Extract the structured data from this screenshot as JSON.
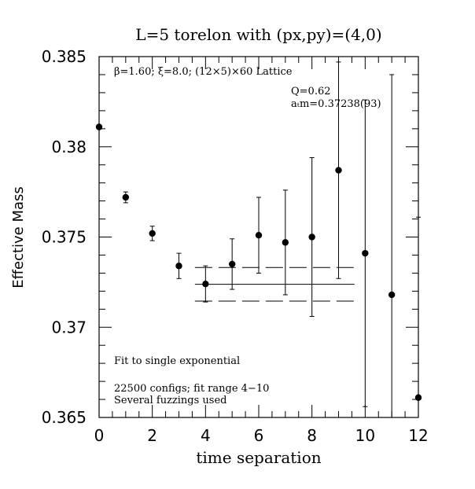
{
  "chart_data": {
    "type": "scatter",
    "title": "L=5 torelon with (px,py)=(4,0)",
    "xlabel": "time separation",
    "ylabel": "Effective Mass",
    "xlim": [
      0,
      12
    ],
    "ylim": [
      0.365,
      0.385
    ],
    "x_ticks": [
      0,
      2,
      4,
      6,
      8,
      10,
      12
    ],
    "x_tick_labels": [
      "0",
      "2",
      "4",
      "6",
      "8",
      "10",
      "12"
    ],
    "y_ticks": [
      0.365,
      0.37,
      0.375,
      0.38,
      0.385
    ],
    "y_tick_labels": [
      "0.365",
      "0.37",
      "0.375",
      "0.38",
      "0.385"
    ],
    "grid": false,
    "points": [
      {
        "x": 0,
        "y": 0.3811,
        "err": 0.0
      },
      {
        "x": 1,
        "y": 0.3772,
        "err": 0.0003
      },
      {
        "x": 2,
        "y": 0.3752,
        "err": 0.0004
      },
      {
        "x": 3,
        "y": 0.3734,
        "err": 0.0007
      },
      {
        "x": 4,
        "y": 0.3724,
        "err": 0.001
      },
      {
        "x": 5,
        "y": 0.3735,
        "err": 0.0014
      },
      {
        "x": 6,
        "y": 0.3751,
        "err": 0.0021
      },
      {
        "x": 7,
        "y": 0.3747,
        "err": 0.0029
      },
      {
        "x": 8,
        "y": 0.375,
        "err": 0.0044
      },
      {
        "x": 9,
        "y": 0.3787,
        "err": 0.006
      },
      {
        "x": 10,
        "y": 0.3741,
        "err": 0.0085
      },
      {
        "x": 11,
        "y": 0.3718,
        "err": 0.0122
      },
      {
        "x": 12,
        "y": 0.3661,
        "err": 0.01
      }
    ],
    "fit": {
      "x_range": [
        3.6,
        9.6
      ],
      "central": 0.37238,
      "lower": 0.37145,
      "upper": 0.37331
    },
    "annotations": {
      "lattice": "β=1.60; ξ=8.0; (12×5)×60 Lattice",
      "q": "Q=0.62",
      "mass": "aₜm=0.37238(93)",
      "fit_type": "Fit to single exponential",
      "configs": "22500 configs; fit range 4−10",
      "fuzzing": "Several fuzzings used"
    }
  }
}
